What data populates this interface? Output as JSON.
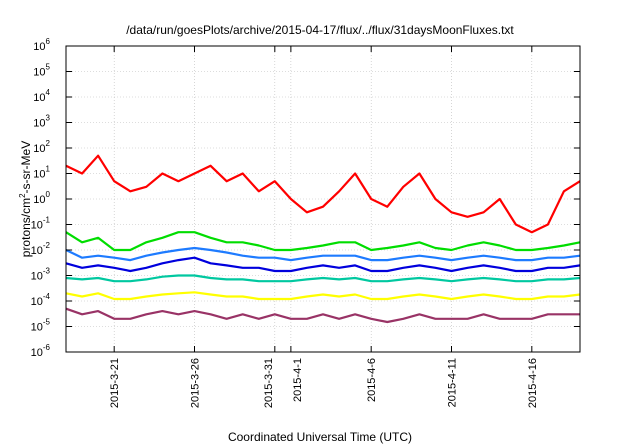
{
  "chart_data": {
    "type": "line",
    "title": "/data/run/goesPlots/archive/2015-04-17/flux/../flux/31daysMoonFluxes.txt",
    "xlabel": "Coordinated Universal Time (UTC)",
    "ylabel": "protons/cm²-s-sr-MeV",
    "ylabel_parts": {
      "a": "protons/cm",
      "sup": "2",
      "b": "-s-sr-MeV"
    },
    "yscale": "log",
    "ylim": [
      1e-06,
      1000000.0
    ],
    "xlim": [
      "2015-03-18",
      "2015-04-19"
    ],
    "y_ticks": [
      {
        "value": 1e-06,
        "base": "10",
        "exp": "-6"
      },
      {
        "value": 1e-05,
        "base": "10",
        "exp": "-5"
      },
      {
        "value": 0.0001,
        "base": "10",
        "exp": "-4"
      },
      {
        "value": 0.001,
        "base": "10",
        "exp": "-3"
      },
      {
        "value": 0.01,
        "base": "10",
        "exp": "-2"
      },
      {
        "value": 0.1,
        "base": "10",
        "exp": "-1"
      },
      {
        "value": 1,
        "base": "10",
        "exp": "0"
      },
      {
        "value": 10,
        "base": "10",
        "exp": "1"
      },
      {
        "value": 100,
        "base": "10",
        "exp": "2"
      },
      {
        "value": 1000,
        "base": "10",
        "exp": "3"
      },
      {
        "value": 10000,
        "base": "10",
        "exp": "4"
      },
      {
        "value": 100000,
        "base": "10",
        "exp": "5"
      },
      {
        "value": 1000000,
        "base": "10",
        "exp": "6"
      }
    ],
    "x_ticks": [
      {
        "date": "2015-03-21",
        "label": "2015-3-21"
      },
      {
        "date": "2015-03-26",
        "label": "2015-3-26"
      },
      {
        "date": "2015-03-31",
        "label": "2015-3-31"
      },
      {
        "date": "2015-04-01",
        "label": "2015-4-1"
      },
      {
        "date": "2015-04-06",
        "label": "2015-4-6"
      },
      {
        "date": "2015-04-11",
        "label": "2015-4-11"
      },
      {
        "date": "2015-04-16",
        "label": "2015-4-16"
      }
    ],
    "grid": true,
    "series": [
      {
        "color": "#ff0000",
        "x": [
          "2015-03-18",
          "2015-03-19",
          "2015-03-20",
          "2015-03-21",
          "2015-03-22",
          "2015-03-23",
          "2015-03-24",
          "2015-03-25",
          "2015-03-26",
          "2015-03-27",
          "2015-03-28",
          "2015-03-29",
          "2015-03-30",
          "2015-03-31",
          "2015-04-01",
          "2015-04-02",
          "2015-04-03",
          "2015-04-04",
          "2015-04-05",
          "2015-04-06",
          "2015-04-07",
          "2015-04-08",
          "2015-04-09",
          "2015-04-10",
          "2015-04-11",
          "2015-04-12",
          "2015-04-13",
          "2015-04-14",
          "2015-04-15",
          "2015-04-16",
          "2015-04-17",
          "2015-04-18",
          "2015-04-19"
        ],
        "values": [
          20,
          10,
          50,
          5,
          2,
          3,
          10,
          5,
          10,
          20,
          5,
          10,
          2,
          5,
          1,
          0.3,
          0.5,
          2,
          10,
          1,
          0.5,
          3,
          10,
          1,
          0.3,
          0.2,
          0.3,
          1,
          0.1,
          0.05,
          0.1,
          2,
          5
        ]
      },
      {
        "color": "#00dd00",
        "x": [
          "2015-03-18",
          "2015-03-19",
          "2015-03-20",
          "2015-03-21",
          "2015-03-22",
          "2015-03-23",
          "2015-03-24",
          "2015-03-25",
          "2015-03-26",
          "2015-03-27",
          "2015-03-28",
          "2015-03-29",
          "2015-03-30",
          "2015-03-31",
          "2015-04-01",
          "2015-04-02",
          "2015-04-03",
          "2015-04-04",
          "2015-04-05",
          "2015-04-06",
          "2015-04-07",
          "2015-04-08",
          "2015-04-09",
          "2015-04-10",
          "2015-04-11",
          "2015-04-12",
          "2015-04-13",
          "2015-04-14",
          "2015-04-15",
          "2015-04-16",
          "2015-04-17",
          "2015-04-18",
          "2015-04-19"
        ],
        "values": [
          0.05,
          0.02,
          0.03,
          0.01,
          0.01,
          0.02,
          0.03,
          0.05,
          0.05,
          0.03,
          0.02,
          0.02,
          0.015,
          0.01,
          0.01,
          0.012,
          0.015,
          0.02,
          0.02,
          0.01,
          0.012,
          0.015,
          0.02,
          0.012,
          0.01,
          0.015,
          0.02,
          0.015,
          0.01,
          0.01,
          0.012,
          0.015,
          0.02
        ]
      },
      {
        "color": "#1e7bff",
        "x": [
          "2015-03-18",
          "2015-03-19",
          "2015-03-20",
          "2015-03-21",
          "2015-03-22",
          "2015-03-23",
          "2015-03-24",
          "2015-03-25",
          "2015-03-26",
          "2015-03-27",
          "2015-03-28",
          "2015-03-29",
          "2015-03-30",
          "2015-03-31",
          "2015-04-01",
          "2015-04-02",
          "2015-04-03",
          "2015-04-04",
          "2015-04-05",
          "2015-04-06",
          "2015-04-07",
          "2015-04-08",
          "2015-04-09",
          "2015-04-10",
          "2015-04-11",
          "2015-04-12",
          "2015-04-13",
          "2015-04-14",
          "2015-04-15",
          "2015-04-16",
          "2015-04-17",
          "2015-04-18",
          "2015-04-19"
        ],
        "values": [
          0.01,
          0.005,
          0.006,
          0.005,
          0.004,
          0.006,
          0.008,
          0.01,
          0.012,
          0.01,
          0.008,
          0.006,
          0.005,
          0.005,
          0.004,
          0.005,
          0.006,
          0.006,
          0.006,
          0.004,
          0.004,
          0.005,
          0.006,
          0.005,
          0.004,
          0.005,
          0.006,
          0.005,
          0.004,
          0.004,
          0.005,
          0.005,
          0.006
        ]
      },
      {
        "color": "#0000dd",
        "x": [
          "2015-03-18",
          "2015-03-19",
          "2015-03-20",
          "2015-03-21",
          "2015-03-22",
          "2015-03-23",
          "2015-03-24",
          "2015-03-25",
          "2015-03-26",
          "2015-03-27",
          "2015-03-28",
          "2015-03-29",
          "2015-03-30",
          "2015-03-31",
          "2015-04-01",
          "2015-04-02",
          "2015-04-03",
          "2015-04-04",
          "2015-04-05",
          "2015-04-06",
          "2015-04-07",
          "2015-04-08",
          "2015-04-09",
          "2015-04-10",
          "2015-04-11",
          "2015-04-12",
          "2015-04-13",
          "2015-04-14",
          "2015-04-15",
          "2015-04-16",
          "2015-04-17",
          "2015-04-18",
          "2015-04-19"
        ],
        "values": [
          0.003,
          0.002,
          0.0025,
          0.002,
          0.0015,
          0.002,
          0.003,
          0.004,
          0.005,
          0.003,
          0.0025,
          0.002,
          0.002,
          0.0015,
          0.0015,
          0.002,
          0.0025,
          0.002,
          0.0025,
          0.0015,
          0.0015,
          0.002,
          0.0025,
          0.002,
          0.0015,
          0.002,
          0.0025,
          0.002,
          0.0015,
          0.0015,
          0.002,
          0.002,
          0.0025
        ]
      },
      {
        "color": "#00c8a0",
        "x": [
          "2015-03-18",
          "2015-03-19",
          "2015-03-20",
          "2015-03-21",
          "2015-03-22",
          "2015-03-23",
          "2015-03-24",
          "2015-03-25",
          "2015-03-26",
          "2015-03-27",
          "2015-03-28",
          "2015-03-29",
          "2015-03-30",
          "2015-03-31",
          "2015-04-01",
          "2015-04-02",
          "2015-04-03",
          "2015-04-04",
          "2015-04-05",
          "2015-04-06",
          "2015-04-07",
          "2015-04-08",
          "2015-04-09",
          "2015-04-10",
          "2015-04-11",
          "2015-04-12",
          "2015-04-13",
          "2015-04-14",
          "2015-04-15",
          "2015-04-16",
          "2015-04-17",
          "2015-04-18",
          "2015-04-19"
        ],
        "values": [
          0.0008,
          0.0007,
          0.0008,
          0.0006,
          0.0006,
          0.0007,
          0.0009,
          0.001,
          0.001,
          0.0008,
          0.0007,
          0.0007,
          0.0006,
          0.0006,
          0.0006,
          0.0007,
          0.0008,
          0.0007,
          0.0008,
          0.0006,
          0.0006,
          0.0007,
          0.0008,
          0.0007,
          0.0006,
          0.0007,
          0.0008,
          0.0007,
          0.0006,
          0.0006,
          0.0007,
          0.0007,
          0.0008
        ]
      },
      {
        "color": "#ffff00",
        "x": [
          "2015-03-18",
          "2015-03-19",
          "2015-03-20",
          "2015-03-21",
          "2015-03-22",
          "2015-03-23",
          "2015-03-24",
          "2015-03-25",
          "2015-03-26",
          "2015-03-27",
          "2015-03-28",
          "2015-03-29",
          "2015-03-30",
          "2015-03-31",
          "2015-04-01",
          "2015-04-02",
          "2015-04-03",
          "2015-04-04",
          "2015-04-05",
          "2015-04-06",
          "2015-04-07",
          "2015-04-08",
          "2015-04-09",
          "2015-04-10",
          "2015-04-11",
          "2015-04-12",
          "2015-04-13",
          "2015-04-14",
          "2015-04-15",
          "2015-04-16",
          "2015-04-17",
          "2015-04-18",
          "2015-04-19"
        ],
        "values": [
          0.0002,
          0.00015,
          0.0002,
          0.00012,
          0.00012,
          0.00015,
          0.00018,
          0.0002,
          0.00022,
          0.00018,
          0.00015,
          0.00015,
          0.00012,
          0.00012,
          0.00012,
          0.00015,
          0.00018,
          0.00015,
          0.00018,
          0.00012,
          0.00012,
          0.00015,
          0.00018,
          0.00015,
          0.00012,
          0.00015,
          0.00018,
          0.00015,
          0.00012,
          0.00012,
          0.00015,
          0.00015,
          0.00018
        ]
      },
      {
        "color": "#993366",
        "x": [
          "2015-03-18",
          "2015-03-19",
          "2015-03-20",
          "2015-03-21",
          "2015-03-22",
          "2015-03-23",
          "2015-03-24",
          "2015-03-25",
          "2015-03-26",
          "2015-03-27",
          "2015-03-28",
          "2015-03-29",
          "2015-03-30",
          "2015-03-31",
          "2015-04-01",
          "2015-04-02",
          "2015-04-03",
          "2015-04-04",
          "2015-04-05",
          "2015-04-06",
          "2015-04-07",
          "2015-04-08",
          "2015-04-09",
          "2015-04-10",
          "2015-04-11",
          "2015-04-12",
          "2015-04-13",
          "2015-04-14",
          "2015-04-15",
          "2015-04-16",
          "2015-04-17",
          "2015-04-18",
          "2015-04-19"
        ],
        "values": [
          5e-05,
          3e-05,
          4e-05,
          2e-05,
          2e-05,
          3e-05,
          4e-05,
          3e-05,
          4e-05,
          3e-05,
          2e-05,
          3e-05,
          2e-05,
          3e-05,
          2e-05,
          2e-05,
          3e-05,
          2e-05,
          3e-05,
          2e-05,
          1.5e-05,
          2e-05,
          3e-05,
          2e-05,
          2e-05,
          2e-05,
          3e-05,
          2e-05,
          2e-05,
          2e-05,
          3e-05,
          3e-05,
          3e-05
        ]
      }
    ]
  }
}
